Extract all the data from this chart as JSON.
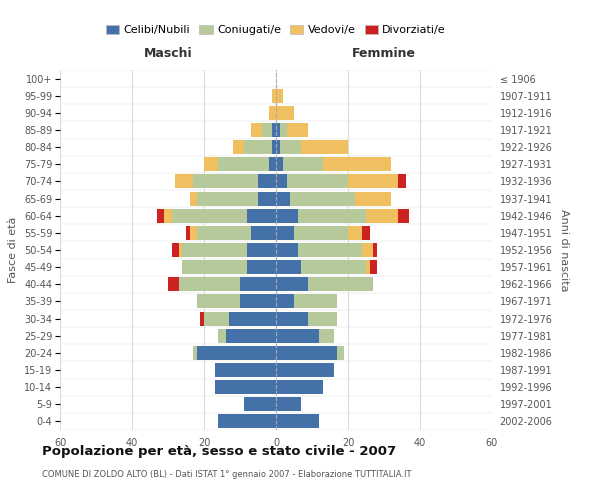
{
  "age_groups": [
    "0-4",
    "5-9",
    "10-14",
    "15-19",
    "20-24",
    "25-29",
    "30-34",
    "35-39",
    "40-44",
    "45-49",
    "50-54",
    "55-59",
    "60-64",
    "65-69",
    "70-74",
    "75-79",
    "80-84",
    "85-89",
    "90-94",
    "95-99",
    "100+"
  ],
  "birth_years": [
    "2002-2006",
    "1997-2001",
    "1992-1996",
    "1987-1991",
    "1982-1986",
    "1977-1981",
    "1972-1976",
    "1967-1971",
    "1962-1966",
    "1957-1961",
    "1952-1956",
    "1947-1951",
    "1942-1946",
    "1937-1941",
    "1932-1936",
    "1927-1931",
    "1922-1926",
    "1917-1921",
    "1912-1916",
    "1907-1911",
    "≤ 1906"
  ],
  "males": {
    "celibi": [
      16,
      9,
      17,
      17,
      22,
      14,
      13,
      10,
      10,
      8,
      8,
      7,
      8,
      5,
      5,
      2,
      1,
      1,
      0,
      0,
      0
    ],
    "coniugati": [
      0,
      0,
      0,
      0,
      1,
      2,
      7,
      12,
      17,
      18,
      18,
      15,
      21,
      17,
      18,
      14,
      8,
      3,
      0,
      0,
      0
    ],
    "vedovi": [
      0,
      0,
      0,
      0,
      0,
      0,
      0,
      0,
      0,
      0,
      1,
      2,
      2,
      2,
      5,
      4,
      3,
      3,
      2,
      1,
      0
    ],
    "divorziati": [
      0,
      0,
      0,
      0,
      0,
      0,
      1,
      0,
      3,
      0,
      2,
      1,
      2,
      0,
      0,
      0,
      0,
      0,
      0,
      0,
      0
    ]
  },
  "females": {
    "nubili": [
      12,
      7,
      13,
      16,
      17,
      12,
      9,
      5,
      9,
      7,
      6,
      5,
      6,
      4,
      3,
      2,
      1,
      1,
      0,
      0,
      0
    ],
    "coniugate": [
      0,
      0,
      0,
      0,
      2,
      4,
      8,
      12,
      18,
      18,
      18,
      15,
      19,
      18,
      17,
      11,
      6,
      2,
      0,
      0,
      0
    ],
    "vedove": [
      0,
      0,
      0,
      0,
      0,
      0,
      0,
      0,
      0,
      1,
      3,
      4,
      9,
      10,
      14,
      19,
      13,
      6,
      5,
      2,
      0
    ],
    "divorziate": [
      0,
      0,
      0,
      0,
      0,
      0,
      0,
      0,
      0,
      2,
      1,
      2,
      3,
      0,
      2,
      0,
      0,
      0,
      0,
      0,
      0
    ]
  },
  "colors": {
    "celibi": "#4472a8",
    "coniugati": "#b5c99a",
    "vedovi": "#f0c060",
    "divorziati": "#cc2222"
  },
  "title": "Popolazione per età, sesso e stato civile - 2007",
  "subtitle": "COMUNE DI ZOLDO ALTO (BL) - Dati ISTAT 1° gennaio 2007 - Elaborazione TUTTITALIA.IT",
  "label_maschi": "Maschi",
  "label_femmine": "Femmine",
  "ylabel_left": "Fasce di età",
  "ylabel_right": "Anni di nascita",
  "legend_labels": [
    "Celibi/Nubili",
    "Coniugati/e",
    "Vedovi/e",
    "Divorziati/e"
  ],
  "xlim": 60
}
